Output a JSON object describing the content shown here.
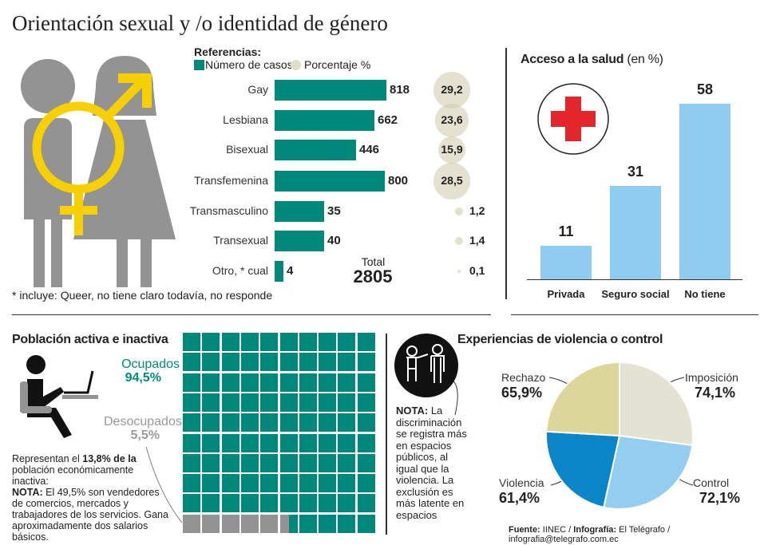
{
  "title": "Orientación sexual y /o identidad de género",
  "colors": {
    "teal": "#00897b",
    "circle": "#e0ddc8",
    "gray": "#939393",
    "yellow": "#f7d000",
    "blue_light": "#90ccef",
    "red": "#e3262a"
  },
  "chart_data": [
    {
      "type": "bar",
      "orientation": "horizontal",
      "legend_title": "Referencias:",
      "legend": [
        "Número de casos",
        "Porcentaje %"
      ],
      "categories": [
        "Gay",
        "Lesbiana",
        "Bisexual",
        "Transfemenina",
        "Transmasculino",
        "Transexual",
        "Otro, * cual"
      ],
      "series": [
        {
          "name": "Número de casos",
          "values": [
            818,
            662,
            446,
            800,
            35,
            40,
            4
          ]
        },
        {
          "name": "Porcentaje %",
          "values": [
            "29,2",
            "23,6",
            "15,9",
            "28,5",
            "1,2",
            "1,4",
            "0,1"
          ]
        }
      ],
      "value_labels": [
        "818",
        "662",
        "446",
        "800",
        "35",
        "40",
        "4"
      ],
      "total_label": "Total",
      "total": "2805",
      "footnote": "* incluye: Queer, no tiene claro todavía, no responde"
    },
    {
      "type": "bar",
      "title": "Acceso a la salud",
      "title_unit": "(en %)",
      "categories": [
        "Privada",
        "Seguro social",
        "No tiene"
      ],
      "values": [
        11,
        31,
        58
      ],
      "value_labels": [
        "11",
        "31",
        "58"
      ]
    },
    {
      "type": "waffle",
      "title": "Población activa e inactiva",
      "series": [
        {
          "name": "Ocupados",
          "value": 94.5,
          "label": "94,5%"
        },
        {
          "name": "Desocupados",
          "value": 5.5,
          "label": "5,5%"
        }
      ]
    },
    {
      "type": "pie",
      "title": "Experiencias de violencia o control",
      "categories": [
        "Imposición",
        "Control",
        "Violencia",
        "Rechazo"
      ],
      "labels": [
        "74,1%",
        "72,1%",
        "61,4%",
        "65,9%"
      ],
      "values": [
        74.1,
        72.1,
        61.4,
        65.9
      ],
      "colors": [
        "#e4e2d3",
        "#93cdf0",
        "#0a86c8",
        "#ddd69a"
      ]
    }
  ],
  "poblacion": {
    "text1": "Representan el ",
    "bold1": "13,8% de la",
    "text2": " población económicamente inactiva:",
    "nota": "NOTA:",
    "nota_text": " El 49,5% son vendedores de comercios, mercados y trabajadores de los servicios. Gana aproximadamente dos salarios básicos."
  },
  "violencia_note": {
    "nota": "NOTA:",
    "text": " La discriminación se registra más en espacios públicos, al igual que la violencia. La exclusión es más latente en espacios"
  },
  "source": {
    "fuente_label": "Fuente:",
    "fuente": " IINEC / ",
    "infografia_label": "Infografía:",
    "credit": "  El Telégrafo / infografia@telegrafo.com.ec"
  }
}
